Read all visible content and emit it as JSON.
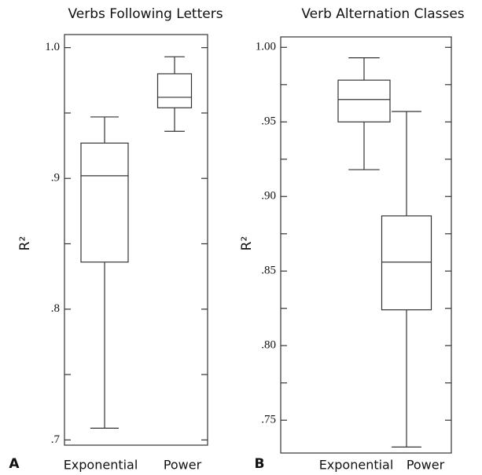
{
  "chart_data": [
    {
      "type": "box",
      "title": "Verbs Following Letters",
      "panel_label": "A",
      "ylabel": "R²",
      "categories": [
        "Exponential",
        "Power"
      ],
      "boxes": [
        {
          "min": 0.709,
          "q1": 0.836,
          "median": 0.902,
          "q3": 0.927,
          "max": 0.947
        },
        {
          "min": 0.936,
          "q1": 0.954,
          "median": 0.962,
          "q3": 0.98,
          "max": 0.993
        }
      ],
      "ylim": [
        0.696,
        1.01
      ],
      "yticks": [
        {
          "value": 0.7,
          "label": ".7"
        },
        {
          "value": 0.8,
          "label": ".8"
        },
        {
          "value": 0.9,
          "label": ".9"
        },
        {
          "value": 1.0,
          "label": "1.0"
        }
      ],
      "yminorticks": [
        0.75,
        0.85,
        0.95
      ]
    },
    {
      "type": "box",
      "title": "Verb Alternation Classes",
      "panel_label": "B",
      "ylabel": "R²",
      "categories": [
        "Exponential",
        "Power"
      ],
      "boxes": [
        {
          "min": 0.918,
          "q1": 0.95,
          "median": 0.965,
          "q3": 0.978,
          "max": 0.993
        },
        {
          "min": 0.732,
          "q1": 0.824,
          "median": 0.856,
          "q3": 0.887,
          "max": 0.957
        }
      ],
      "ylim": [
        0.728,
        1.007
      ],
      "yticks": [
        {
          "value": 0.75,
          "label": ".75"
        },
        {
          "value": 0.8,
          "label": ".80"
        },
        {
          "value": 0.85,
          "label": ".85"
        },
        {
          "value": 0.9,
          "label": ".90"
        },
        {
          "value": 0.95,
          "label": ".95"
        },
        {
          "value": 1.0,
          "label": "1.00"
        }
      ],
      "yminorticks": [
        0.775,
        0.825,
        0.875,
        0.925,
        0.975
      ]
    }
  ]
}
